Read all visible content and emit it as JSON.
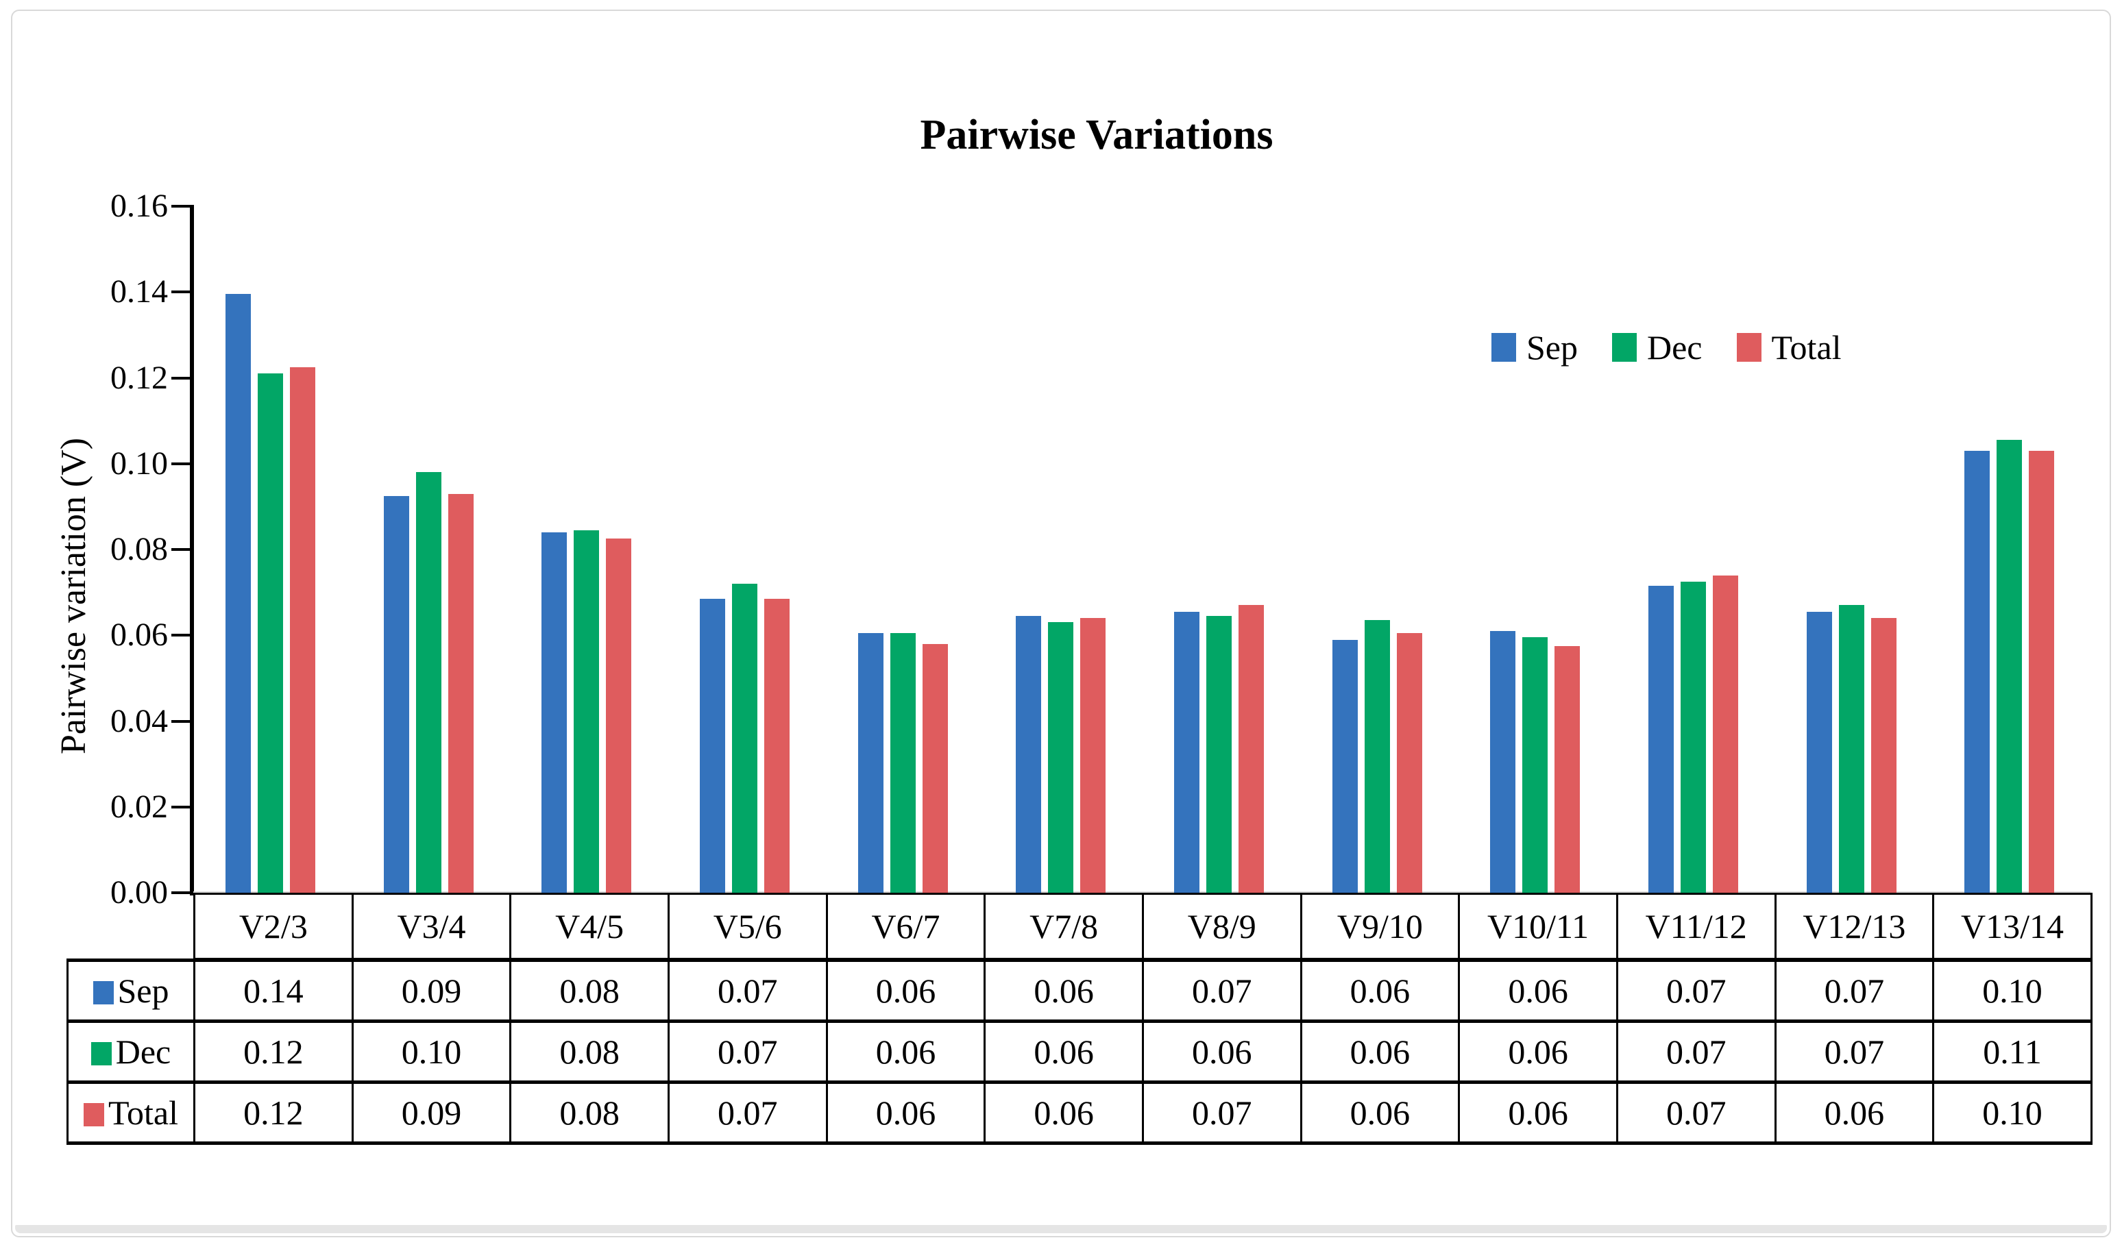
{
  "chart_data": {
    "type": "bar",
    "title": "Pairwise Variations",
    "ylabel": "Pairwise variation (V)",
    "ylim": [
      0,
      0.16
    ],
    "ytick_step": 0.02,
    "ytick_labels": [
      "0.16",
      "0.14",
      "0.12",
      "0.10",
      "0.08",
      "0.06",
      "0.04",
      "0.02",
      "0.00"
    ],
    "grid": false,
    "legend_position": "inside-top-right",
    "legend_labels": [
      "Sep",
      "Dec",
      "Total"
    ],
    "categories": [
      "V2/3",
      "V3/4",
      "V4/5",
      "V5/6",
      "V6/7",
      "V7/8",
      "V8/9",
      "V9/10",
      "V10/11",
      "V11/12",
      "V12/13",
      "V13/14"
    ],
    "series": [
      {
        "name": "Sep",
        "color": "#3473BD",
        "values": [
          0.1395,
          0.0925,
          0.084,
          0.0685,
          0.0605,
          0.0645,
          0.0655,
          0.059,
          0.061,
          0.0715,
          0.0655,
          0.103
        ]
      },
      {
        "name": "Dec",
        "color": "#02A666",
        "values": [
          0.121,
          0.098,
          0.0845,
          0.072,
          0.0605,
          0.063,
          0.0645,
          0.0635,
          0.0595,
          0.0725,
          0.067,
          0.1055
        ]
      },
      {
        "name": "Total",
        "color": "#DF5C5E",
        "values": [
          0.1225,
          0.093,
          0.0825,
          0.0685,
          0.058,
          0.064,
          0.067,
          0.0605,
          0.0575,
          0.074,
          0.064,
          0.103
        ]
      }
    ],
    "data_table": {
      "corner_label": "",
      "rows": [
        {
          "label": "Sep",
          "values": [
            "0.14",
            "0.09",
            "0.08",
            "0.07",
            "0.06",
            "0.06",
            "0.07",
            "0.06",
            "0.06",
            "0.07",
            "0.07",
            "0.10"
          ]
        },
        {
          "label": "Dec",
          "values": [
            "0.12",
            "0.10",
            "0.08",
            "0.07",
            "0.06",
            "0.06",
            "0.06",
            "0.06",
            "0.06",
            "0.07",
            "0.07",
            "0.11"
          ]
        },
        {
          "label": "Total",
          "values": [
            "0.12",
            "0.09",
            "0.08",
            "0.07",
            "0.06",
            "0.06",
            "0.07",
            "0.06",
            "0.06",
            "0.07",
            "0.06",
            "0.10"
          ]
        }
      ]
    }
  }
}
